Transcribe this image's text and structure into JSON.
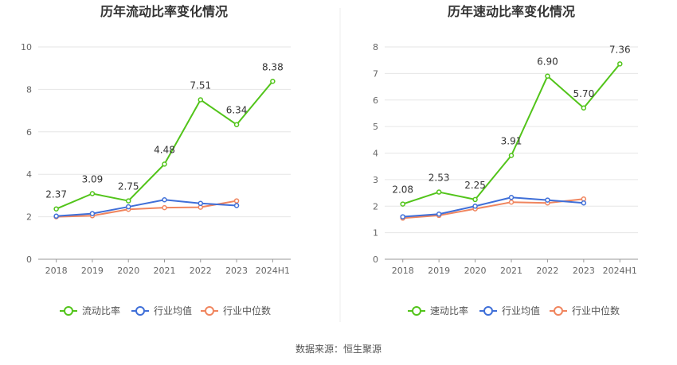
{
  "source": "数据来源：恒生聚源",
  "chart_data": [
    {
      "type": "line",
      "title": "历年流动比率变化情况",
      "categories": [
        "2018",
        "2019",
        "2020",
        "2021",
        "2022",
        "2023",
        "2024H1"
      ],
      "ylim": [
        0,
        10
      ],
      "yticks": [
        0,
        2,
        4,
        6,
        8,
        10
      ],
      "grid": true,
      "legend_position": "bottom-center",
      "series": [
        {
          "name": "流动比率",
          "color": "#52c41a",
          "values": [
            2.37,
            3.09,
            2.75,
            4.48,
            7.51,
            6.34,
            8.38
          ],
          "data_labels": [
            "2.37",
            "3.09",
            "2.75",
            "4.48",
            "7.51",
            "6.34",
            "8.38"
          ]
        },
        {
          "name": "行业均值",
          "color": "#3f6fd8",
          "values": [
            2.03,
            2.15,
            2.47,
            2.8,
            2.63,
            2.53,
            null
          ]
        },
        {
          "name": "行业中位数",
          "color": "#f0855e",
          "values": [
            2.0,
            2.05,
            2.35,
            2.43,
            2.45,
            2.75,
            null
          ]
        }
      ]
    },
    {
      "type": "line",
      "title": "历年速动比率变化情况",
      "categories": [
        "2018",
        "2019",
        "2020",
        "2021",
        "2022",
        "2023",
        "2024H1"
      ],
      "ylim": [
        0,
        8
      ],
      "yticks": [
        0,
        1,
        2,
        3,
        4,
        5,
        6,
        7,
        8
      ],
      "grid": true,
      "legend_position": "bottom-center",
      "series": [
        {
          "name": "速动比率",
          "color": "#52c41a",
          "values": [
            2.08,
            2.53,
            2.25,
            3.91,
            6.9,
            5.7,
            7.36
          ],
          "data_labels": [
            "2.08",
            "2.53",
            "2.25",
            "3.91",
            "6.90",
            "5.70",
            "7.36"
          ]
        },
        {
          "name": "行业均值",
          "color": "#3f6fd8",
          "values": [
            1.6,
            1.7,
            2.0,
            2.33,
            2.23,
            2.12,
            null
          ]
        },
        {
          "name": "行业中位数",
          "color": "#f0855e",
          "values": [
            1.55,
            1.65,
            1.9,
            2.15,
            2.12,
            2.27,
            null
          ]
        }
      ]
    }
  ]
}
